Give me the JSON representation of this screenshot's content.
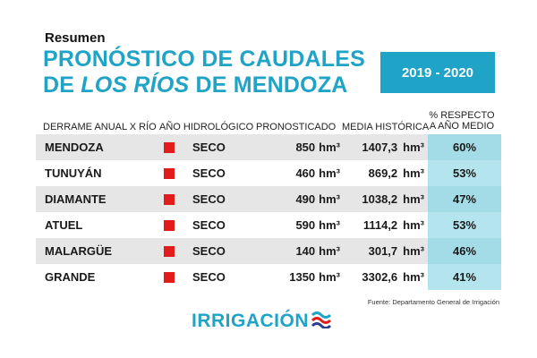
{
  "header": {
    "kicker": "Resumen",
    "title_line1": "PRONÓSTICO DE CAUDALES",
    "title_line2_pre": "DE ",
    "title_line2_italic": "LOS RÍOS",
    "title_line2_post": " DE MENDOZA",
    "period": "2019 - 2020"
  },
  "table": {
    "columns": {
      "river": "DERRAME ANUAL X RÍO",
      "year_type": "AÑO HIDROLÓGICO",
      "forecast": "PRONOSTICADO",
      "historical": "MEDIA HISTÓRICA",
      "pct_line1": "% RESPECTO",
      "pct_line2": "A AÑO MEDIO"
    },
    "unit": "hm³",
    "rows": [
      {
        "river": "MENDOZA",
        "status": "SECO",
        "forecast": "850",
        "historical": "1407,3",
        "pct": "60%"
      },
      {
        "river": "TUNUYÁN",
        "status": "SECO",
        "forecast": "460",
        "historical": "869,2",
        "pct": "53%"
      },
      {
        "river": "DIAMANTE",
        "status": "SECO",
        "forecast": "490",
        "historical": "1038,2",
        "pct": "47%"
      },
      {
        "river": "ATUEL",
        "status": "SECO",
        "forecast": "590",
        "historical": "1114,2",
        "pct": "53%"
      },
      {
        "river": "MALARGÜE",
        "status": "SECO",
        "forecast": "140",
        "historical": "301,7",
        "pct": "46%"
      },
      {
        "river": "GRANDE",
        "status": "SECO",
        "forecast": "1350",
        "historical": "3302,6",
        "pct": "41%"
      }
    ]
  },
  "footer": {
    "source": "Fuente: Departamento General de Irrigación",
    "logo_text": "IRRIGACIÓN"
  },
  "colors": {
    "accent": "#1fa3c6",
    "status_dry": "#e21b1b",
    "pct_cell": "#b4e5ee",
    "row_shade": "#e6e6e6"
  }
}
